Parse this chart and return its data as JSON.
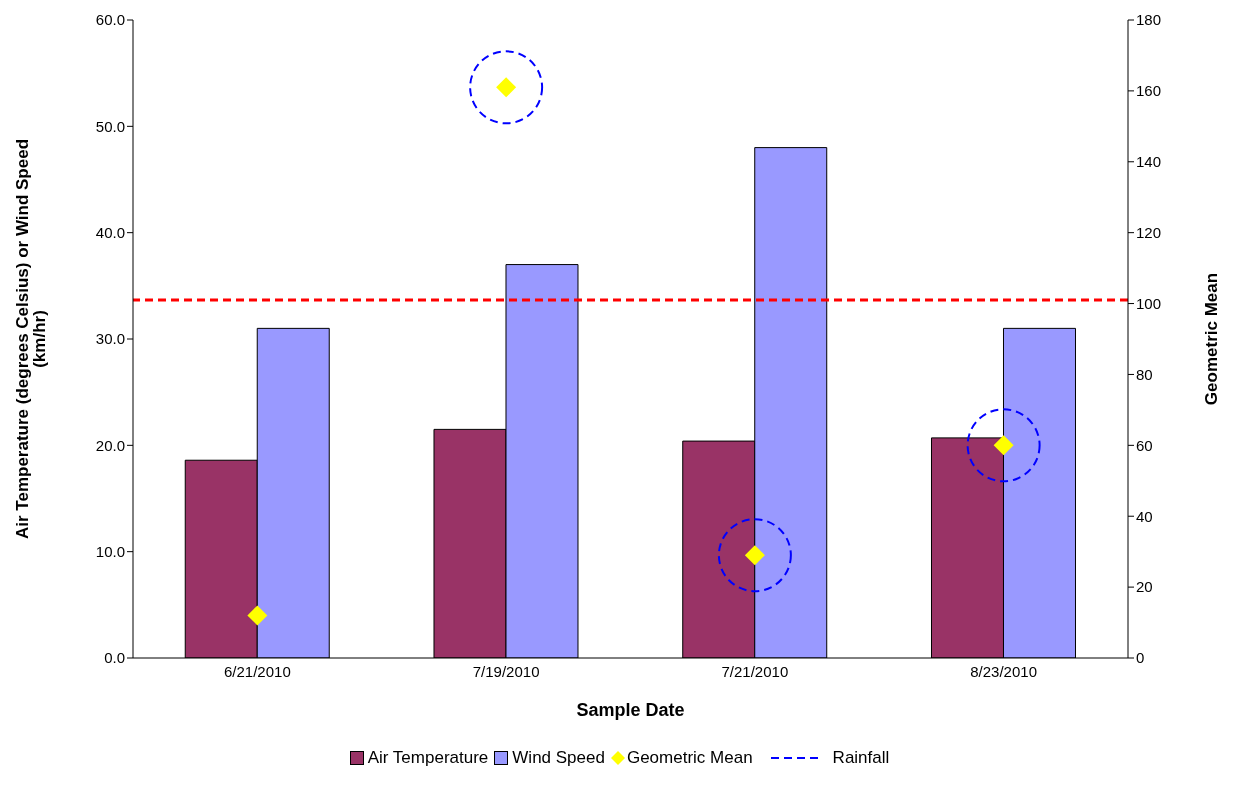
{
  "chart_data": {
    "type": "bar",
    "xlabel": "Sample Date",
    "ylabel": "Air Temperature (degrees Celsius) or Wind Speed (km/hr)",
    "y2label": "Geometric Mean",
    "categories": [
      "6/21/2010",
      "7/19/2010",
      "7/21/2010",
      "8/23/2010"
    ],
    "series": [
      {
        "name": "Air Temperature",
        "color": "#993366",
        "values": [
          18.6,
          21.5,
          20.4,
          20.7
        ]
      },
      {
        "name": "Wind Speed",
        "color": "#9999ff",
        "values": [
          31,
          37,
          48,
          31
        ]
      },
      {
        "name": "Geometric Mean",
        "type": "scatter",
        "axis": "y2",
        "marker": "diamond",
        "color": "#ffff00",
        "values": [
          12,
          161,
          29,
          60
        ]
      },
      {
        "name": "Rainfall",
        "type": "scatter",
        "axis": "y2",
        "marker": "circle",
        "line_style": "dashed",
        "color": "#0000ff",
        "values": [
          null,
          161,
          29,
          60
        ]
      }
    ],
    "ylim": [
      0,
      60
    ],
    "yticks": [
      {
        "value": 0,
        "label": "0.0"
      },
      {
        "value": 10,
        "label": "10.0"
      },
      {
        "value": 20,
        "label": "20.0"
      },
      {
        "value": 30,
        "label": "30.0"
      },
      {
        "value": 40,
        "label": "40.0"
      },
      {
        "value": 50,
        "label": "50.0"
      },
      {
        "value": 60,
        "label": "60.0"
      }
    ],
    "y2lim": [
      0,
      180
    ],
    "y2ticks": [
      0,
      20,
      40,
      60,
      80,
      100,
      120,
      140,
      160,
      180
    ],
    "ref_lines": [
      {
        "axis": "y2",
        "value": 101,
        "color": "#ff0000",
        "line_style": "dashed"
      }
    ],
    "grid": false,
    "legend": "bottom"
  }
}
